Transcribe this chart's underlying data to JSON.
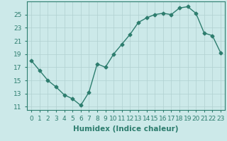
{
  "x": [
    0,
    1,
    2,
    3,
    4,
    5,
    6,
    7,
    8,
    9,
    10,
    11,
    12,
    13,
    14,
    15,
    16,
    17,
    18,
    19,
    20,
    21,
    22,
    23
  ],
  "y": [
    18.0,
    16.5,
    15.0,
    14.0,
    12.8,
    12.2,
    11.2,
    13.2,
    17.5,
    17.0,
    19.0,
    20.5,
    22.0,
    23.8,
    24.5,
    25.0,
    25.2,
    25.0,
    26.0,
    26.2,
    25.2,
    22.2,
    21.8,
    19.2
  ],
  "line_color": "#2d7d6e",
  "marker": "D",
  "marker_size": 2.5,
  "bg_color": "#cce9e9",
  "grid_color": "#b0d0d0",
  "xlabel": "Humidex (Indice chaleur)",
  "xlim": [
    -0.5,
    23.5
  ],
  "ylim": [
    10.5,
    27.0
  ],
  "yticks": [
    11,
    13,
    15,
    17,
    19,
    21,
    23,
    25
  ],
  "xticks": [
    0,
    1,
    2,
    3,
    4,
    5,
    6,
    7,
    8,
    9,
    10,
    11,
    12,
    13,
    14,
    15,
    16,
    17,
    18,
    19,
    20,
    21,
    22,
    23
  ],
  "xlabel_fontsize": 7.5,
  "tick_fontsize": 6.5,
  "line_width": 1.0
}
